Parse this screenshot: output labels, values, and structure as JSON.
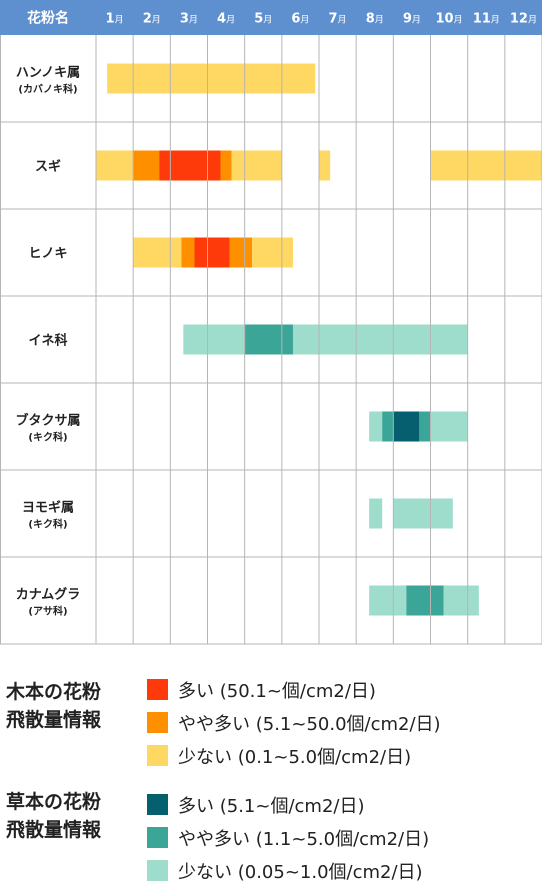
{
  "chart_data": {
    "type": "gantt",
    "header_label": "花粉名",
    "month_unit": "月",
    "months": [
      "1",
      "2",
      "3",
      "4",
      "5",
      "6",
      "7",
      "8",
      "9",
      "10",
      "11",
      "12"
    ],
    "rows": [
      {
        "name": "ハンノキ属",
        "sub": "(カバノキ科)",
        "segments": [
          {
            "start": 1.3,
            "end": 6.9,
            "level": "tree_low"
          }
        ]
      },
      {
        "name": "スギ",
        "sub": "",
        "segments": [
          {
            "start": 1.0,
            "end": 2.0,
            "level": "tree_low"
          },
          {
            "start": 2.0,
            "end": 2.7,
            "level": "tree_mid"
          },
          {
            "start": 2.7,
            "end": 4.35,
            "level": "tree_high"
          },
          {
            "start": 4.35,
            "end": 4.65,
            "level": "tree_mid"
          },
          {
            "start": 4.65,
            "end": 6.0,
            "level": "tree_low"
          },
          {
            "start": 7.0,
            "end": 7.3,
            "level": "tree_low"
          },
          {
            "start": 10.0,
            "end": 13.0,
            "level": "tree_low"
          }
        ]
      },
      {
        "name": "ヒノキ",
        "sub": "",
        "segments": [
          {
            "start": 2.0,
            "end": 3.3,
            "level": "tree_low"
          },
          {
            "start": 3.3,
            "end": 3.65,
            "level": "tree_mid"
          },
          {
            "start": 3.65,
            "end": 4.6,
            "level": "tree_high"
          },
          {
            "start": 4.6,
            "end": 5.2,
            "level": "tree_mid"
          },
          {
            "start": 5.2,
            "end": 6.3,
            "level": "tree_low"
          }
        ]
      },
      {
        "name": "イネ科",
        "sub": "",
        "segments": [
          {
            "start": 3.35,
            "end": 5.0,
            "level": "grass_low"
          },
          {
            "start": 5.0,
            "end": 6.3,
            "level": "grass_mid"
          },
          {
            "start": 6.3,
            "end": 11.0,
            "level": "grass_low"
          }
        ]
      },
      {
        "name": "ブタクサ属",
        "sub": "(キク科)",
        "segments": [
          {
            "start": 8.35,
            "end": 8.7,
            "level": "grass_low"
          },
          {
            "start": 8.7,
            "end": 9.0,
            "level": "grass_mid"
          },
          {
            "start": 9.0,
            "end": 9.7,
            "level": "grass_high"
          },
          {
            "start": 9.7,
            "end": 10.0,
            "level": "grass_mid"
          },
          {
            "start": 10.0,
            "end": 11.0,
            "level": "grass_low"
          }
        ]
      },
      {
        "name": "ヨモギ属",
        "sub": "(キク科)",
        "segments": [
          {
            "start": 8.35,
            "end": 8.7,
            "level": "grass_low"
          },
          {
            "start": 9.0,
            "end": 10.6,
            "level": "grass_low"
          }
        ]
      },
      {
        "name": "カナムグラ",
        "sub": "(アサ科)",
        "segments": [
          {
            "start": 8.35,
            "end": 9.35,
            "level": "grass_low"
          },
          {
            "start": 9.35,
            "end": 10.35,
            "level": "grass_mid"
          },
          {
            "start": 10.35,
            "end": 11.3,
            "level": "grass_low"
          }
        ]
      }
    ],
    "colors": {
      "header": "#5e8fcf",
      "grid": "#b5b5b5",
      "tree_high": "#fe3a0a",
      "tree_mid": "#fe9000",
      "tree_low": "#fed862",
      "grass_high": "#065f6e",
      "grass_mid": "#3ba598",
      "grass_low": "#9edccb"
    }
  },
  "legend": {
    "groups": [
      {
        "title": [
          "木本の花粉",
          "飛散量情報"
        ],
        "items": [
          {
            "level": "tree_high",
            "label": "多い (50.1~個/cm2/日)"
          },
          {
            "level": "tree_mid",
            "label": "やや多い (5.1~50.0個/cm2/日)"
          },
          {
            "level": "tree_low",
            "label": "少ない (0.1~5.0個/cm2/日)"
          }
        ]
      },
      {
        "title": [
          "草本の花粉",
          "飛散量情報"
        ],
        "items": [
          {
            "level": "grass_high",
            "label": "多い (5.1~個/cm2/日)"
          },
          {
            "level": "grass_mid",
            "label": "やや多い (1.1~5.0個/cm2/日)"
          },
          {
            "level": "grass_low",
            "label": "少ない (0.05~1.0個/cm2/日)"
          }
        ]
      }
    ]
  }
}
